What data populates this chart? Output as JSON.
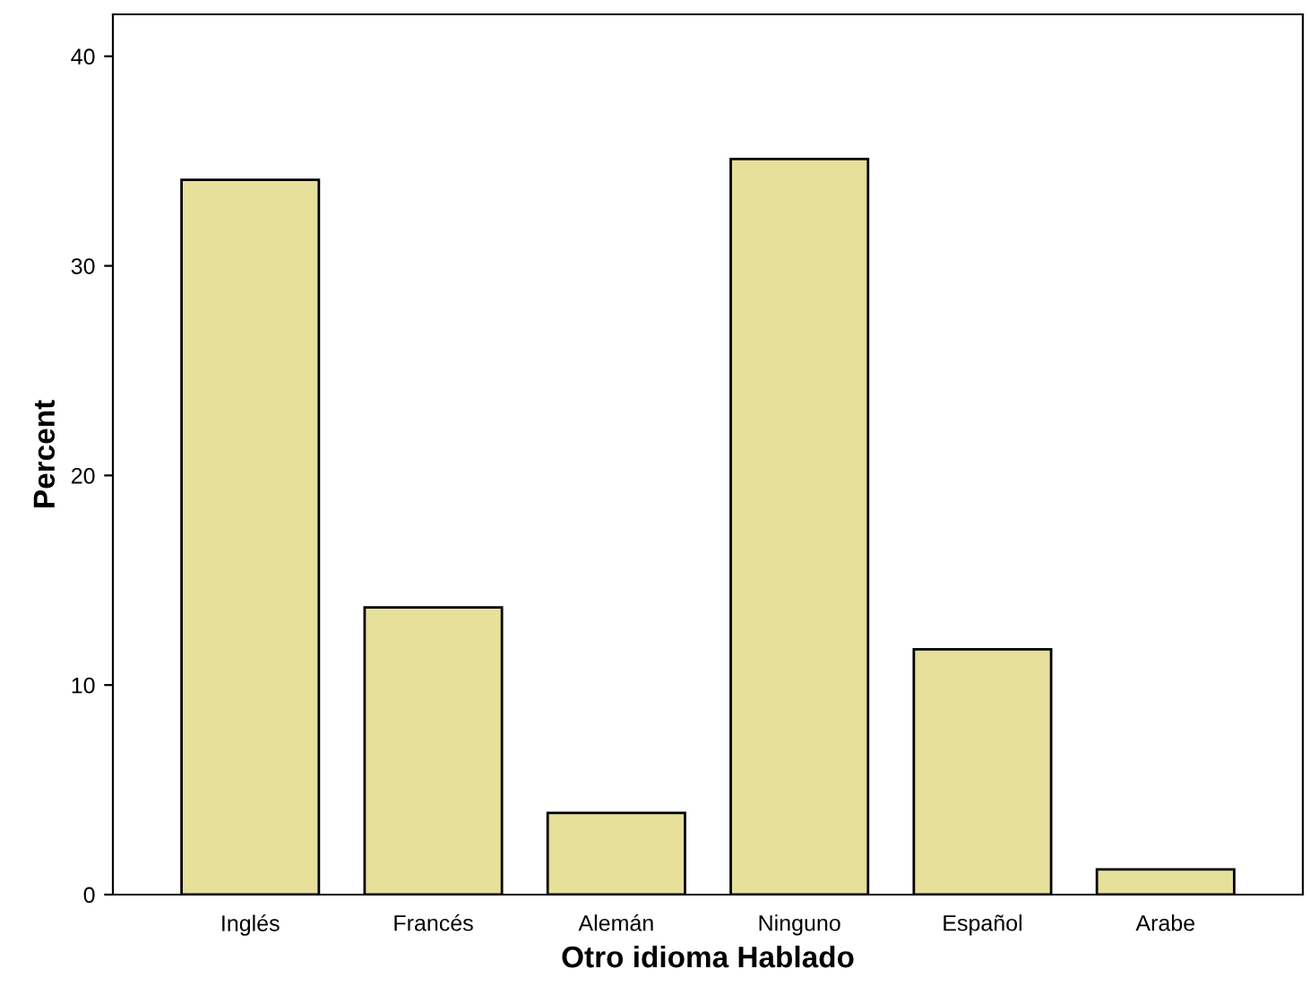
{
  "chart_data": {
    "type": "bar",
    "xlabel": "Otro idioma Hablado",
    "ylabel": "Percent",
    "categories": [
      "Inglés",
      "Francés",
      "Alemán",
      "Ninguno",
      "Español",
      "Arabe"
    ],
    "values": [
      34.1,
      13.7,
      3.9,
      35.1,
      11.7,
      1.2
    ],
    "color": "#e6e09a",
    "ylim": [
      0,
      42
    ],
    "yticks": [
      0,
      10,
      20,
      30,
      40
    ],
    "grid": false
  }
}
